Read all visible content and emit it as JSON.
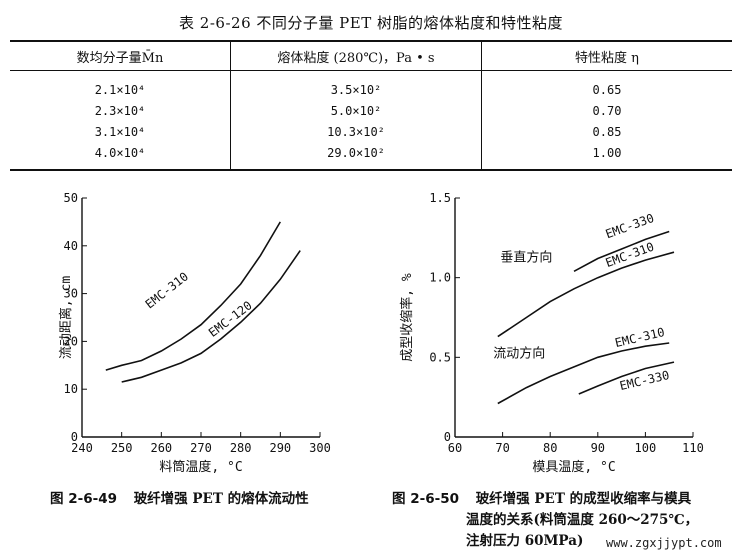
{
  "table": {
    "title": "表 2-6-26   不同分子量 PET 树脂的熔体粘度和特性粘度",
    "headers": [
      "数均分子量M̄n",
      "熔体粘度 (280℃)，Pa • s",
      "特性粘度 η"
    ],
    "rows": [
      [
        "2.1×10⁴",
        "3.5×10²",
        "0.65"
      ],
      [
        "2.3×10⁴",
        "5.0×10²",
        "0.70"
      ],
      [
        "3.1×10⁴",
        "10.3×10²",
        "0.85"
      ],
      [
        "4.0×10⁴",
        "29.0×10²",
        "1.00"
      ]
    ]
  },
  "chart_data": [
    {
      "type": "line",
      "title": "",
      "xlabel": "料筒温度, °C",
      "ylabel": "流动距离, cm",
      "xlim": [
        240,
        300
      ],
      "ylim": [
        0,
        50
      ],
      "x_ticks": [
        "240",
        "250",
        "260",
        "270",
        "280",
        "290",
        "300"
      ],
      "y_ticks": [
        "0",
        "10",
        "20",
        "30",
        "40",
        "50"
      ],
      "grid": false,
      "series": [
        {
          "name": "EMC-310",
          "x": [
            246,
            250,
            255,
            260,
            265,
            270,
            275,
            280,
            285,
            290
          ],
          "y": [
            14,
            15,
            16,
            18,
            20.5,
            23.5,
            27.5,
            32,
            38,
            45
          ]
        },
        {
          "name": "EMC-120",
          "x": [
            250,
            255,
            260,
            265,
            270,
            275,
            280,
            285,
            290,
            295
          ],
          "y": [
            11.5,
            12.5,
            14,
            15.5,
            17.5,
            20.5,
            24,
            28,
            33,
            39
          ]
        }
      ]
    },
    {
      "type": "line",
      "title": "",
      "xlabel": "模具温度, °C",
      "ylabel": "成型收缩率, %",
      "xlim": [
        60,
        110
      ],
      "ylim": [
        0,
        1.5
      ],
      "x_ticks": [
        "60",
        "70",
        "80",
        "90",
        "100",
        "110"
      ],
      "y_ticks": [
        "0",
        "0.5",
        "1.0",
        "1.5"
      ],
      "grid": false,
      "annotations": [
        "垂直方向",
        "流动方向"
      ],
      "series": [
        {
          "name": "EMC-330",
          "x": [
            85,
            90,
            95,
            100,
            105
          ],
          "y": [
            1.04,
            1.12,
            1.18,
            1.24,
            1.29
          ]
        },
        {
          "name": "EMC-310",
          "x": [
            69,
            75,
            80,
            85,
            90,
            95,
            100,
            106
          ],
          "y": [
            0.63,
            0.75,
            0.85,
            0.93,
            1.0,
            1.06,
            1.11,
            1.16
          ]
        },
        {
          "name": "EMC-310",
          "x": [
            69,
            75,
            80,
            85,
            90,
            95,
            100,
            105
          ],
          "y": [
            0.21,
            0.31,
            0.38,
            0.44,
            0.5,
            0.54,
            0.57,
            0.59
          ]
        },
        {
          "name": "EMC-330",
          "x": [
            86,
            90,
            95,
            100,
            106
          ],
          "y": [
            0.27,
            0.32,
            0.38,
            0.43,
            0.47
          ]
        }
      ]
    }
  ],
  "captions": {
    "left_number": "图 2-6-49",
    "left_text": "玻纤增强 PET 的熔体流动性",
    "right_number": "图 2-6-50",
    "right_line1": "玻纤增强 PET 的成型收缩率与模具",
    "right_line2": "温度的关系(料筒温度 260～275℃，",
    "right_line3": "注射压力 60MPa)"
  },
  "watermark": "www.zgxjjypt.com"
}
